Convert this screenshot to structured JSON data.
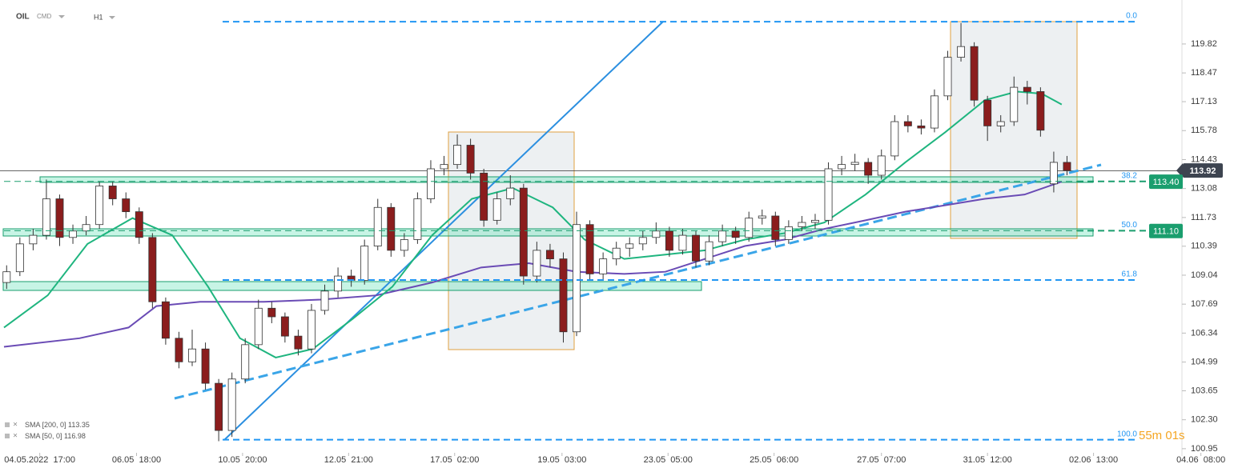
{
  "header": {
    "symbol": "OIL",
    "market": "CMD",
    "interval": "H1"
  },
  "chart_data": {
    "type": "candlestick",
    "xlim": [
      -0.5,
      92.9
    ],
    "ylim": [
      100.61,
      121.87
    ],
    "xticks": [
      {
        "value": 2.5,
        "label": "04.05.2022  17:00"
      },
      {
        "value": 9.8,
        "label": "06.05  18:00"
      },
      {
        "value": 17.8,
        "label": "10.05  20:00"
      },
      {
        "value": 25.8,
        "label": "12.05  21:00"
      },
      {
        "value": 33.8,
        "label": "17.05  02:00"
      },
      {
        "value": 41.9,
        "label": "19.05  03:00"
      },
      {
        "value": 49.9,
        "label": "23.05  05:00"
      },
      {
        "value": 57.9,
        "label": "25.05  06:00"
      },
      {
        "value": 66,
        "label": "27.05  07:00"
      },
      {
        "value": 74,
        "label": "31.05  12:00"
      },
      {
        "value": 82,
        "label": "02.06  13:00"
      },
      {
        "value": 90.1,
        "label": "04.06  08:00"
      }
    ],
    "yticks": [
      119.82,
      118.47,
      117.13,
      115.78,
      114.43,
      113.08,
      111.73,
      110.39,
      109.04,
      107.69,
      106.34,
      104.99,
      103.65,
      {
        "value": 102.3,
        "label": "102.30"
      },
      100.95
    ],
    "up_color": "#ffffff",
    "down_color": "#8b1d1d",
    "ohlc": [
      [
        108.7,
        109.5,
        108.4,
        109.2
      ],
      [
        109.2,
        110.8,
        109.0,
        110.5
      ],
      [
        110.5,
        111.2,
        110.2,
        110.9
      ],
      [
        110.9,
        113.5,
        110.7,
        112.6
      ],
      [
        112.6,
        112.8,
        110.4,
        110.8
      ],
      [
        110.8,
        111.4,
        110.5,
        111.1
      ],
      [
        111.1,
        111.8,
        110.9,
        111.4
      ],
      [
        111.4,
        113.4,
        111.2,
        113.2
      ],
      [
        113.2,
        113.4,
        112.3,
        112.6
      ],
      [
        112.6,
        112.9,
        111.7,
        112.0
      ],
      [
        112.0,
        112.2,
        110.5,
        110.8
      ],
      [
        110.8,
        111.0,
        107.5,
        107.8
      ],
      [
        107.8,
        108.0,
        105.8,
        106.1
      ],
      [
        106.1,
        106.4,
        104.7,
        105.0
      ],
      [
        105.0,
        106.5,
        104.8,
        105.6
      ],
      [
        105.6,
        105.9,
        103.7,
        104.0
      ],
      [
        104.0,
        104.2,
        101.3,
        101.8
      ],
      [
        101.8,
        104.5,
        101.5,
        104.2
      ],
      [
        104.2,
        106.1,
        104.0,
        105.8
      ],
      [
        105.8,
        107.9,
        105.6,
        107.5
      ],
      [
        107.5,
        107.8,
        106.8,
        107.1
      ],
      [
        107.1,
        107.3,
        105.9,
        106.2
      ],
      [
        106.2,
        106.5,
        105.3,
        105.6
      ],
      [
        105.6,
        107.7,
        105.4,
        107.4
      ],
      [
        107.4,
        108.6,
        107.2,
        108.3
      ],
      [
        108.3,
        109.4,
        108.0,
        109.0
      ],
      [
        109.0,
        109.3,
        108.5,
        108.8
      ],
      [
        108.8,
        110.7,
        108.6,
        110.4
      ],
      [
        110.4,
        112.6,
        110.2,
        112.2
      ],
      [
        112.2,
        112.4,
        109.9,
        110.2
      ],
      [
        110.2,
        111.0,
        109.9,
        110.7
      ],
      [
        110.7,
        112.9,
        110.5,
        112.6
      ],
      [
        112.6,
        114.4,
        112.4,
        114.0
      ],
      [
        114.0,
        114.6,
        113.7,
        114.2
      ],
      [
        114.2,
        115.6,
        114.0,
        115.1
      ],
      [
        115.1,
        115.4,
        113.5,
        113.8
      ],
      [
        113.8,
        114.0,
        111.3,
        111.6
      ],
      [
        111.6,
        112.9,
        111.4,
        112.6
      ],
      [
        112.6,
        113.7,
        112.3,
        113.1
      ],
      [
        113.1,
        113.3,
        108.6,
        109.0
      ],
      [
        109.0,
        110.6,
        108.7,
        110.2
      ],
      [
        110.2,
        110.5,
        109.4,
        109.8
      ],
      [
        109.8,
        110.1,
        105.9,
        106.4
      ],
      [
        106.4,
        112.0,
        106.2,
        111.4
      ],
      [
        111.4,
        111.6,
        108.8,
        109.1
      ],
      [
        109.1,
        110.1,
        108.8,
        109.8
      ],
      [
        109.8,
        110.6,
        109.5,
        110.3
      ],
      [
        110.3,
        110.8,
        109.9,
        110.5
      ],
      [
        110.5,
        111.1,
        110.2,
        110.8
      ],
      [
        110.8,
        111.5,
        110.5,
        111.1
      ],
      [
        111.1,
        111.3,
        109.9,
        110.2
      ],
      [
        110.2,
        111.2,
        110.0,
        110.9
      ],
      [
        110.9,
        111.1,
        109.4,
        109.7
      ],
      [
        109.7,
        110.9,
        109.5,
        110.6
      ],
      [
        110.6,
        111.4,
        110.4,
        111.1
      ],
      [
        111.1,
        111.3,
        110.5,
        110.8
      ],
      [
        110.8,
        112.0,
        110.6,
        111.7
      ],
      [
        111.7,
        112.1,
        111.4,
        111.8
      ],
      [
        111.8,
        112.0,
        110.4,
        110.7
      ],
      [
        110.7,
        111.6,
        110.5,
        111.3
      ],
      [
        111.3,
        111.8,
        111.1,
        111.5
      ],
      [
        111.5,
        111.9,
        111.2,
        111.6
      ],
      [
        111.6,
        114.3,
        111.4,
        114.0
      ],
      [
        114.0,
        114.6,
        113.7,
        114.2
      ],
      [
        114.2,
        114.7,
        113.9,
        114.3
      ],
      [
        114.3,
        114.5,
        113.3,
        113.7
      ],
      [
        113.7,
        114.9,
        113.5,
        114.6
      ],
      [
        114.6,
        116.5,
        114.4,
        116.2
      ],
      [
        116.2,
        116.5,
        115.7,
        116.0
      ],
      [
        116.0,
        116.3,
        115.6,
        115.9
      ],
      [
        115.9,
        117.7,
        115.7,
        117.4
      ],
      [
        117.4,
        119.5,
        117.2,
        119.2
      ],
      [
        119.2,
        120.8,
        119.0,
        119.7
      ],
      [
        119.7,
        119.9,
        116.9,
        117.2
      ],
      [
        117.2,
        117.4,
        115.3,
        116.0
      ],
      [
        116.0,
        116.5,
        115.7,
        116.2
      ],
      [
        116.2,
        118.3,
        116.0,
        117.8
      ],
      [
        117.8,
        118.1,
        117.0,
        117.6
      ],
      [
        117.6,
        117.8,
        115.5,
        115.8
      ],
      [
        113.3,
        114.8,
        112.9,
        114.3
      ],
      [
        114.3,
        114.6,
        113.7,
        113.92
      ]
    ],
    "series": [
      {
        "name": "SMA [200, 0]",
        "color": "#6a4bb5",
        "legend_value": 113.35,
        "x": [
          -0.2,
          5.5,
          9.2,
          11.3,
          14.6,
          19.4,
          23.7,
          27.9,
          32.1,
          35.8,
          39.4,
          43.0,
          46.6,
          49.7,
          52.7,
          55.7,
          58.7,
          61.7,
          64.8,
          67.8,
          70.8,
          73.8,
          76.8,
          79.6
        ],
        "values": [
          105.7,
          106.1,
          106.6,
          107.6,
          107.8,
          107.8,
          107.9,
          108.1,
          108.7,
          109.4,
          109.6,
          109.2,
          109.1,
          109.2,
          109.8,
          110.4,
          110.7,
          111.2,
          111.6,
          112.0,
          112.3,
          112.6,
          112.8,
          113.4
        ]
      },
      {
        "name": "SMA [50, 0]",
        "color": "#1fb57f",
        "legend_value": 116.98,
        "x": [
          -0.2,
          3.1,
          6.1,
          9.5,
          12.5,
          15.2,
          17.6,
          20.3,
          23.1,
          26.1,
          29.1,
          32.1,
          35.1,
          38.2,
          41.2,
          43.6,
          46.6,
          49.7,
          52.7,
          55.7,
          58.7,
          61.7,
          64.8,
          67.8,
          70.8,
          73.8,
          76.2,
          78.1,
          79.6
        ],
        "values": [
          106.6,
          108.1,
          110.5,
          111.7,
          110.9,
          108.5,
          106.1,
          105.2,
          105.6,
          107.0,
          108.5,
          110.9,
          112.6,
          113.1,
          112.2,
          110.7,
          109.8,
          110.0,
          110.2,
          110.7,
          111.0,
          111.5,
          112.8,
          114.3,
          115.7,
          117.2,
          117.6,
          117.5,
          117.0
        ]
      }
    ],
    "fib": {
      "high": 120.86,
      "low": 101.37,
      "levels": [
        {
          "value": 0,
          "label": "0.0"
        },
        38.2,
        {
          "value": 50,
          "label": "50.0"
        },
        61.8,
        {
          "value": 100,
          "label": "100.0"
        }
      ]
    },
    "price_tags": {
      "values": [
        113.92,
        {
          "value": 113.4,
          "label": "113.40"
        },
        {
          "value": 111.1,
          "label": "111.10"
        }
      ],
      "colors": [
        "#3d4450",
        "#1a9e6e",
        "#1a9e6e"
      ]
    },
    "countdown": "55m 01s"
  }
}
